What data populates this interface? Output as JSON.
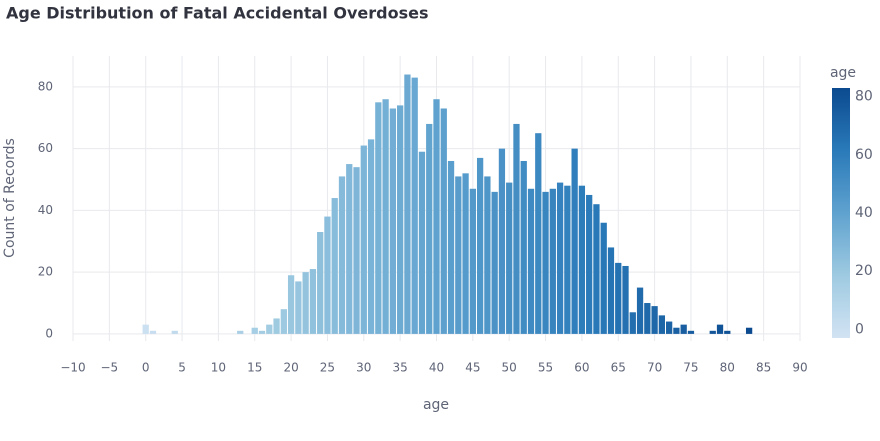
{
  "chart_data": {
    "type": "histogram",
    "title": "Age Distribution of Fatal Accidental Overdoses",
    "x_label": "age",
    "y_label": "Count of Records",
    "bins": [
      -0.5,
      0.5,
      1.5,
      2.5,
      3.5,
      4.5,
      5.5,
      6.5,
      7.5,
      8.5,
      9.5,
      10.5,
      11.5,
      12.5,
      13.5,
      14.5,
      15.5,
      16.5,
      17.5,
      18.5,
      19.5,
      20.5,
      21.5,
      22.5,
      23.5,
      24.5,
      25.5,
      26.5,
      27.5,
      28.5,
      29.5,
      30.5,
      31.5,
      32.5,
      33.5,
      34.5,
      35.5,
      36.5,
      37.5,
      38.5,
      39.5,
      40.5,
      41.5,
      42.5,
      43.5,
      44.5,
      45.5,
      46.5,
      47.5,
      48.5,
      49.5,
      50.5,
      51.5,
      52.5,
      53.5,
      54.5,
      55.5,
      56.5,
      57.5,
      58.5,
      59.5,
      60.5,
      61.5,
      62.5,
      63.5,
      64.5,
      65.5,
      66.5,
      67.5,
      68.5,
      69.5,
      70.5,
      71.5,
      72.5,
      73.5,
      74.5,
      75.5,
      76.5,
      77.5,
      78.5,
      79.5,
      80.5,
      81.5,
      82.5,
      83.5
    ],
    "values": [
      3,
      1,
      0,
      0,
      1,
      0,
      0,
      0,
      0,
      0,
      0,
      0,
      0,
      1,
      0,
      2,
      1,
      3,
      5,
      8,
      19,
      17,
      20,
      21,
      33,
      38,
      44,
      51,
      55,
      54,
      61,
      63,
      75,
      76,
      73,
      74,
      84,
      83,
      59,
      68,
      76,
      73,
      56,
      51,
      52,
      47,
      57,
      51,
      46,
      60,
      49,
      68,
      56,
      47,
      65,
      46,
      47,
      49,
      48,
      60,
      48,
      45,
      42,
      36,
      28,
      23,
      22,
      7,
      15,
      10,
      9,
      6,
      4,
      2,
      3,
      1,
      0,
      0,
      1,
      3,
      1,
      0,
      0,
      2
    ],
    "xlim": [
      -10,
      90
    ],
    "xticks": [
      {
        "value": -10,
        "label": "−10"
      },
      {
        "value": -5,
        "label": "−5"
      },
      0,
      5,
      10,
      15,
      20,
      25,
      30,
      35,
      40,
      45,
      50,
      55,
      60,
      65,
      70,
      75,
      80,
      85,
      90
    ],
    "ylim": [
      -2.3,
      90
    ],
    "yticks": [
      0,
      20,
      40,
      60,
      80
    ],
    "grid": true,
    "colorbar": {
      "title": "age",
      "range": [
        -3,
        83
      ],
      "ticks": [
        0,
        20,
        40,
        60,
        80
      ],
      "colors": [
        "#d2e3f3",
        "#9ecae1",
        "#5fa2cf",
        "#2a7ab9",
        "#0b4a8f"
      ]
    }
  }
}
